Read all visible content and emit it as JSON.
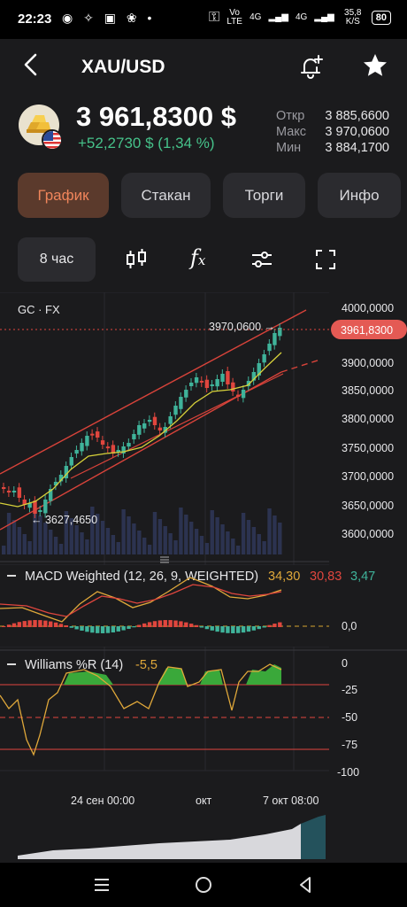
{
  "status_bar": {
    "time": "22:23",
    "net1": "Vo LTE",
    "net2": "4G",
    "net3": "4G",
    "speed": "35,8 K/S",
    "battery": "80"
  },
  "header": {
    "title": "XAU/USD"
  },
  "quote": {
    "price": "3 961,8300 $",
    "change": "+52,2730 $ (1,34 %)",
    "stats": [
      {
        "label": "Откр",
        "value": "3 885,6600"
      },
      {
        "label": "Макс",
        "value": "3 970,0600"
      },
      {
        "label": "Мин",
        "value": "3 884,1700"
      }
    ]
  },
  "tabs": [
    {
      "label": "График",
      "active": true
    },
    {
      "label": "Стакан",
      "active": false
    },
    {
      "label": "Торги",
      "active": false
    },
    {
      "label": "Инфо",
      "active": false
    }
  ],
  "toolbar": {
    "timeframe": "8 час"
  },
  "chart": {
    "symbol_label": "GC · FX",
    "y_ticks": [
      "4000,0000",
      "3900,0000",
      "3850,0000",
      "3800,0000",
      "3750,0000",
      "3700,0000",
      "3650,0000",
      "3600,0000"
    ],
    "current_price_tag": "3961,8300",
    "high_marker": "3970,0600 →",
    "low_marker": "← 3627,4650",
    "macd": {
      "title": "MACD Weighted (12, 26, 9, WEIGHTED)",
      "v1": "34,30",
      "v2": "30,83",
      "v3": "3,47",
      "zero_tick": "0,0"
    },
    "williams": {
      "title": "Williams %R (14)",
      "value": "-5,5",
      "ticks": [
        "0",
        "-25",
        "-50",
        "-75",
        "-100"
      ]
    },
    "x_ticks": [
      "24 сен 00:00",
      "окт",
      "7 окт 08:00"
    ]
  },
  "colors": {
    "up": "#3fb39a",
    "down": "#e0463e",
    "accent": "#f0855b",
    "green": "#46c28a"
  }
}
